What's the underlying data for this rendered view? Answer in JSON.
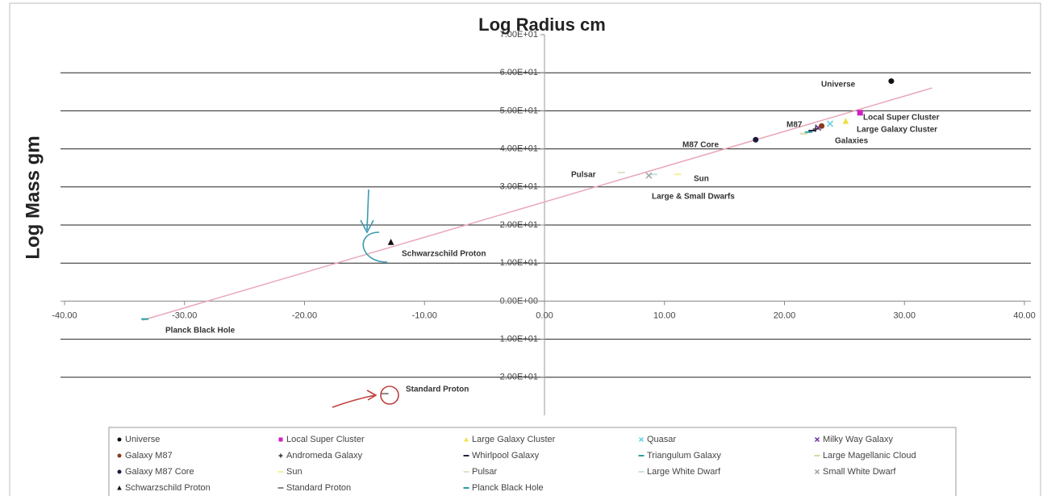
{
  "chart_data": {
    "type": "scatter",
    "title": "Log Radius cm",
    "y_label": "Log Mass gm",
    "xlim": [
      -40,
      40
    ],
    "ylim": [
      -30,
      70
    ],
    "xticks": [
      {
        "value": -40,
        "label": "-40.00"
      },
      {
        "value": -30,
        "label": "-30.00"
      },
      {
        "value": -20,
        "label": "-20.00"
      },
      {
        "value": -10,
        "label": "-10.00"
      },
      {
        "value": 0,
        "label": "0.00"
      },
      {
        "value": 10,
        "label": "10.00"
      },
      {
        "value": 20,
        "label": "20.00"
      },
      {
        "value": 30,
        "label": "30.00"
      },
      {
        "value": 40,
        "label": "40.00"
      }
    ],
    "yticks": [
      {
        "value": -20,
        "label": "-2.00E+01"
      },
      {
        "value": -10,
        "label": "-1.00E+01"
      },
      {
        "value": 0,
        "label": "0.00E+00"
      },
      {
        "value": 10,
        "label": "1.00E+01"
      },
      {
        "value": 20,
        "label": "2.00E+01"
      },
      {
        "value": 30,
        "label": "3.00E+01"
      },
      {
        "value": 40,
        "label": "4.00E+01"
      },
      {
        "value": 50,
        "label": "5.00E+01"
      },
      {
        "value": 60,
        "label": "6.00E+01"
      },
      {
        "value": 70,
        "label": "7.00E+01"
      }
    ],
    "grid": true,
    "series": [
      {
        "name": "Universe",
        "color": "#111111",
        "marker": "circle",
        "x": [
          28.9
        ],
        "values": [
          57.8
        ]
      },
      {
        "name": "Local Super Cluster",
        "color": "#d020c0",
        "marker": "square",
        "x": [
          26.3
        ],
        "values": [
          49.5
        ]
      },
      {
        "name": "Large Galaxy Cluster",
        "color": "#f0e040",
        "marker": "triangle",
        "x": [
          25.1
        ],
        "values": [
          47.3
        ]
      },
      {
        "name": "Quasar",
        "color": "#60d0e0",
        "marker": "x",
        "x": [
          23.8
        ],
        "values": [
          46.6
        ]
      },
      {
        "name": "Milky Way Galaxy",
        "color": "#7030a0",
        "marker": "x",
        "x": [
          22.8
        ],
        "values": [
          45.6
        ]
      },
      {
        "name": "Galaxy M87",
        "color": "#8b3a1a",
        "marker": "circle",
        "x": [
          23.1
        ],
        "values": [
          46.0
        ]
      },
      {
        "name": "Andromeda Galaxy",
        "color": "#333333",
        "marker": "plus",
        "x": [
          22.6
        ],
        "values": [
          45.2
        ]
      },
      {
        "name": "Whirlpool Galaxy",
        "color": "#222244",
        "marker": "dash",
        "x": [
          22.3
        ],
        "values": [
          44.8
        ]
      },
      {
        "name": "Triangulum Galaxy",
        "color": "#2aa0a0",
        "marker": "dash",
        "x": [
          22.0
        ],
        "values": [
          44.4
        ]
      },
      {
        "name": "Large Magellanic Cloud",
        "color": "#d8d8a0",
        "marker": "dash",
        "x": [
          21.6
        ],
        "values": [
          44.0
        ]
      },
      {
        "name": "Galaxy M87 Core",
        "color": "#1a1a3a",
        "marker": "circle",
        "x": [
          17.6
        ],
        "values": [
          42.4
        ]
      },
      {
        "name": "Sun",
        "color": "#f6f0a0",
        "marker": "dash",
        "x": [
          11.1
        ],
        "values": [
          33.3
        ]
      },
      {
        "name": "Pulsar",
        "color": "#e0e0c8",
        "marker": "dash",
        "x": [
          6.4
        ],
        "values": [
          33.8
        ]
      },
      {
        "name": "Large White Dwarf",
        "color": "#c8e0e0",
        "marker": "dash",
        "x": [
          9.1
        ],
        "values": [
          33.3
        ]
      },
      {
        "name": "Small White Dwarf",
        "color": "#a0a0a0",
        "marker": "x",
        "x": [
          8.7
        ],
        "values": [
          33.0
        ]
      },
      {
        "name": "Schwarzschild Proton",
        "color": "#111111",
        "marker": "triangle",
        "x": [
          -12.8
        ],
        "values": [
          15.5
        ]
      },
      {
        "name": "Standard Proton",
        "color": "#888888",
        "marker": "dash",
        "x": [
          -13.3
        ],
        "values": [
          -24.3
        ]
      },
      {
        "name": "Planck Black Hole",
        "color": "#2aa0a0",
        "marker": "dash",
        "x": [
          -33.3
        ],
        "values": [
          -4.7
        ]
      }
    ],
    "trendline": {
      "color": "#e8a8b8",
      "x": [
        -33.5,
        32.3
      ],
      "values": [
        -5,
        56
      ]
    },
    "annotations": [
      "Universe",
      "Local Super Cluster",
      "M87",
      "Large Galaxy Cluster",
      "Galaxies",
      "M87 Core",
      "Pulsar",
      "Sun",
      "Large & Small Dwarfs",
      "Schwarzschild Proton",
      "Planck Black Hole",
      "Standard Proton"
    ]
  }
}
